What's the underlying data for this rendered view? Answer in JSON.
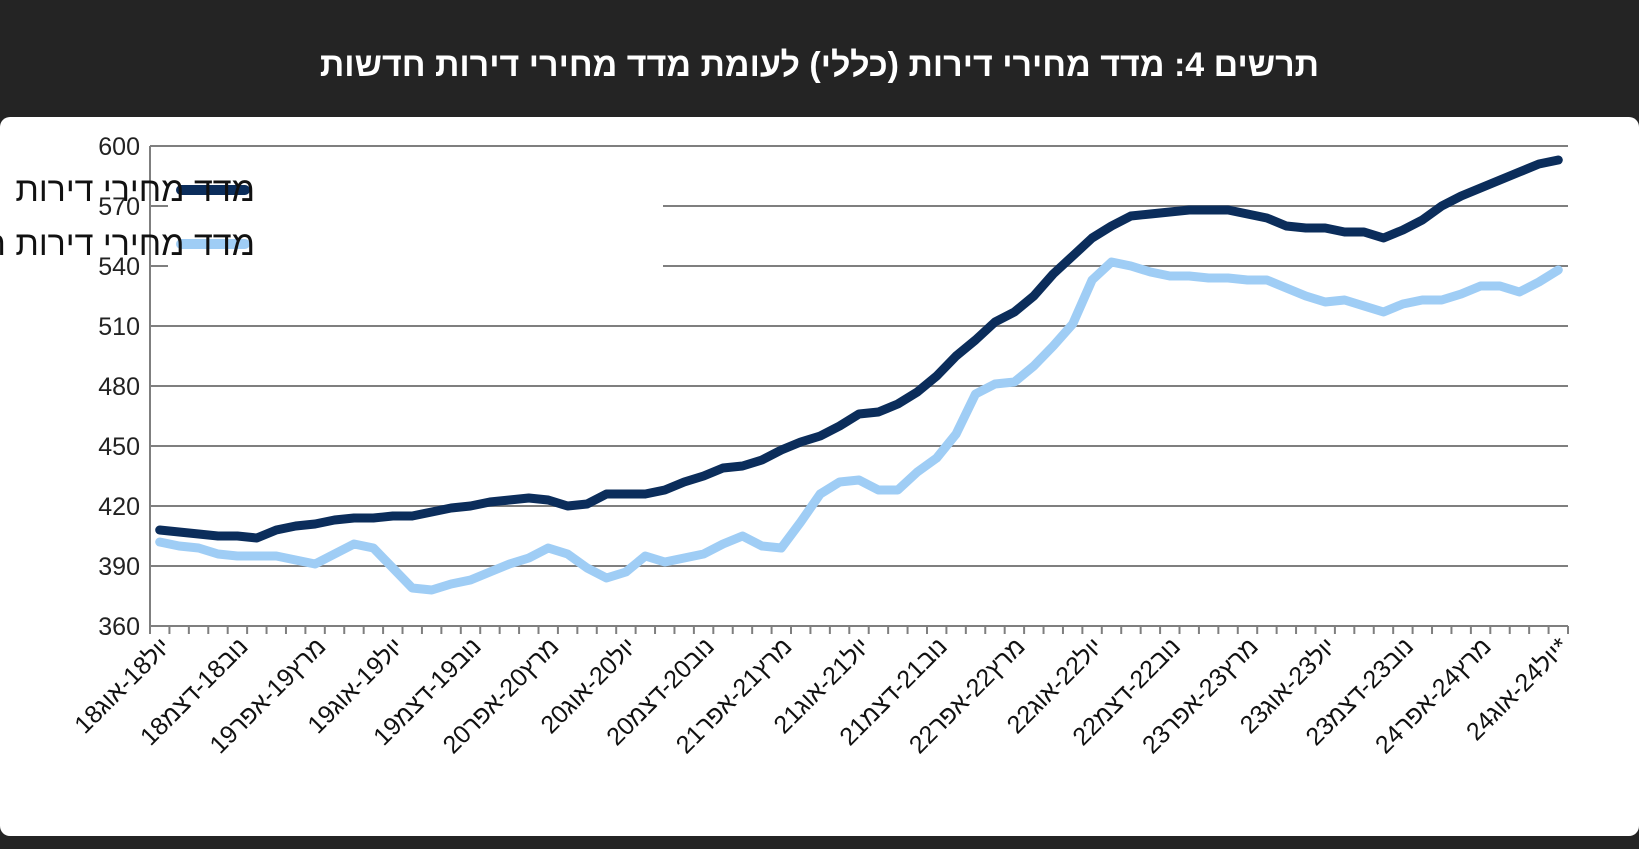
{
  "header": {
    "title": "תרשים 4: מדד מחירי דירות (כללי) לעומת מדד מחירי דירות חדשות"
  },
  "chart_data": {
    "type": "line",
    "title": "תרשים 4: מדד מחירי דירות (כללי) לעומת מדד מחירי דירות חדשות",
    "xlabel": "",
    "ylabel": "",
    "ylim": [
      360,
      600
    ],
    "yticks": [
      360,
      390,
      420,
      450,
      480,
      510,
      540,
      570,
      600
    ],
    "grid": true,
    "legend_position": "top-left",
    "tick_labels": [
      "יול18-אוג18",
      "נוב18-דצמ18",
      "מרץ19-אפר19",
      "יול19-אוג19",
      "נוב19-דצמ19",
      "מרץ20-אפר20",
      "יול20-אוג20",
      "נוב20-דצמ20",
      "מרץ21-אפר21",
      "יול21-אוג21",
      "נוב21-דצמ21",
      "מרץ22-אפר22",
      "יול22-אוג22",
      "נוב22-דצמ22",
      "מרץ23-אפר23",
      "יול23-אוג23",
      "נוב23-דצמ23",
      "מרץ24-אפר24",
      "יול24-אוג24*"
    ],
    "series": [
      {
        "name": "מדד מחירי דירות",
        "color": "#0b2d5b",
        "values": [
          408,
          407,
          406,
          405,
          405,
          404,
          408,
          410,
          411,
          413,
          414,
          414,
          415,
          415,
          417,
          419,
          420,
          422,
          423,
          424,
          423,
          420,
          421,
          426,
          426,
          426,
          428,
          432,
          435,
          439,
          440,
          443,
          448,
          452,
          455,
          460,
          466,
          467,
          471,
          477,
          485,
          495,
          503,
          512,
          517,
          525,
          536,
          545,
          554,
          560,
          565,
          566,
          567,
          568,
          568,
          568,
          566,
          564,
          560,
          559,
          559,
          557,
          557,
          554,
          558,
          563,
          570,
          575,
          579,
          583,
          587,
          591,
          593
        ]
      },
      {
        "name": "מדד מחירי דירות חדשות",
        "color": "#9fcdf5",
        "values": [
          402,
          400,
          399,
          396,
          395,
          395,
          395,
          393,
          391,
          396,
          401,
          399,
          389,
          379,
          378,
          381,
          383,
          387,
          391,
          394,
          399,
          396,
          389,
          384,
          387,
          395,
          392,
          394,
          396,
          401,
          405,
          400,
          399,
          412,
          426,
          432,
          433,
          428,
          428,
          437,
          444,
          456,
          476,
          481,
          482,
          490,
          500,
          511,
          533,
          542,
          540,
          537,
          535,
          535,
          534,
          534,
          533,
          533,
          529,
          525,
          522,
          523,
          520,
          517,
          521,
          523,
          523,
          526,
          530,
          530,
          527,
          532,
          538
        ]
      }
    ]
  }
}
